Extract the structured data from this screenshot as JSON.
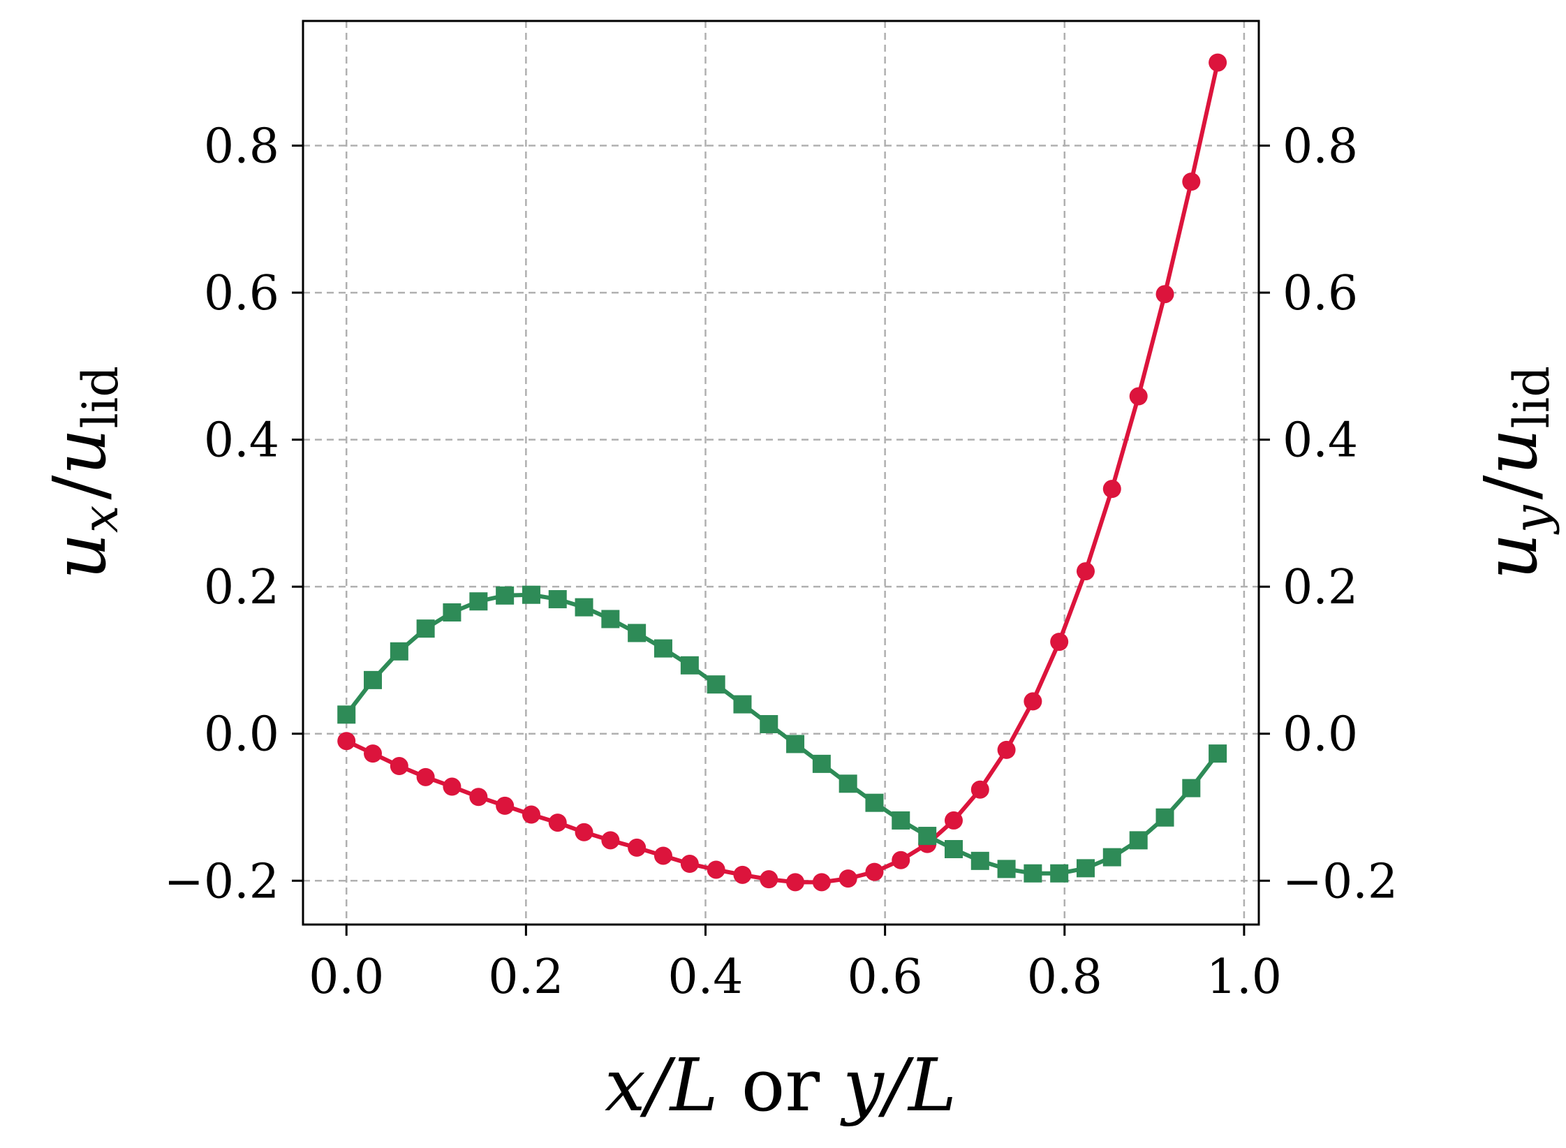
{
  "chart_data": {
    "type": "line",
    "xlabel": {
      "main": "x/L",
      "join": "or",
      "alt": "y/L"
    },
    "ylabel_left": {
      "sym": "u",
      "sub": "x",
      "den": "u",
      "den_sub": "lid"
    },
    "ylabel_right": {
      "sym": "u",
      "sub": "y",
      "den": "u",
      "den_sub": "lid"
    },
    "xlim": [
      -0.0484,
      1.0164
    ],
    "ylim": [
      -0.2596,
      0.9696
    ],
    "grid": true,
    "x_ticks": [
      0.0,
      0.2,
      0.4,
      0.6,
      0.8,
      1.0
    ],
    "x_tick_labels": [
      "0.0",
      "0.2",
      "0.4",
      "0.6",
      "0.8",
      "1.0"
    ],
    "y_ticks": [
      -0.2,
      0.0,
      0.2,
      0.4,
      0.6,
      0.8
    ],
    "y_tick_labels": [
      "−0.2",
      "0.0",
      "0.2",
      "0.4",
      "0.6",
      "0.8"
    ],
    "series": [
      {
        "axis": "left",
        "color": "#dc143c",
        "marker": "circle",
        "x": [
          0.0,
          0.0294,
          0.0588,
          0.0882,
          0.1176,
          0.1471,
          0.1765,
          0.2059,
          0.2353,
          0.2647,
          0.2941,
          0.3235,
          0.3529,
          0.3824,
          0.4118,
          0.4412,
          0.4706,
          0.5,
          0.5294,
          0.5588,
          0.5882,
          0.6176,
          0.6471,
          0.6765,
          0.7059,
          0.7353,
          0.7647,
          0.7941,
          0.8235,
          0.8529,
          0.8824,
          0.9118,
          0.9412,
          0.9706
        ],
        "y": [
          -0.01,
          -0.027,
          -0.044,
          -0.059,
          -0.072,
          -0.086,
          -0.098,
          -0.11,
          -0.121,
          -0.134,
          -0.145,
          -0.155,
          -0.166,
          -0.177,
          -0.185,
          -0.192,
          -0.198,
          -0.202,
          -0.202,
          -0.197,
          -0.188,
          -0.172,
          -0.15,
          -0.118,
          -0.076,
          -0.022,
          0.044,
          0.125,
          0.221,
          0.333,
          0.459,
          0.598,
          0.751,
          0.913
        ]
      },
      {
        "axis": "right",
        "color": "#2e8b57",
        "marker": "square",
        "x": [
          0.0,
          0.0294,
          0.0588,
          0.0882,
          0.1176,
          0.1471,
          0.1765,
          0.2059,
          0.2353,
          0.2647,
          0.2941,
          0.3235,
          0.3529,
          0.3824,
          0.4118,
          0.4412,
          0.4706,
          0.5,
          0.5294,
          0.5588,
          0.5882,
          0.6176,
          0.6471,
          0.6765,
          0.7059,
          0.7353,
          0.7647,
          0.7941,
          0.8235,
          0.8529,
          0.8824,
          0.9118,
          0.9412,
          0.9706
        ],
        "y": [
          0.026,
          0.073,
          0.112,
          0.143,
          0.165,
          0.18,
          0.188,
          0.189,
          0.183,
          0.172,
          0.156,
          0.137,
          0.116,
          0.093,
          0.067,
          0.04,
          0.013,
          -0.014,
          -0.041,
          -0.068,
          -0.094,
          -0.118,
          -0.139,
          -0.157,
          -0.173,
          -0.184,
          -0.19,
          -0.19,
          -0.183,
          -0.168,
          -0.145,
          -0.114,
          -0.074,
          -0.027
        ]
      }
    ]
  }
}
